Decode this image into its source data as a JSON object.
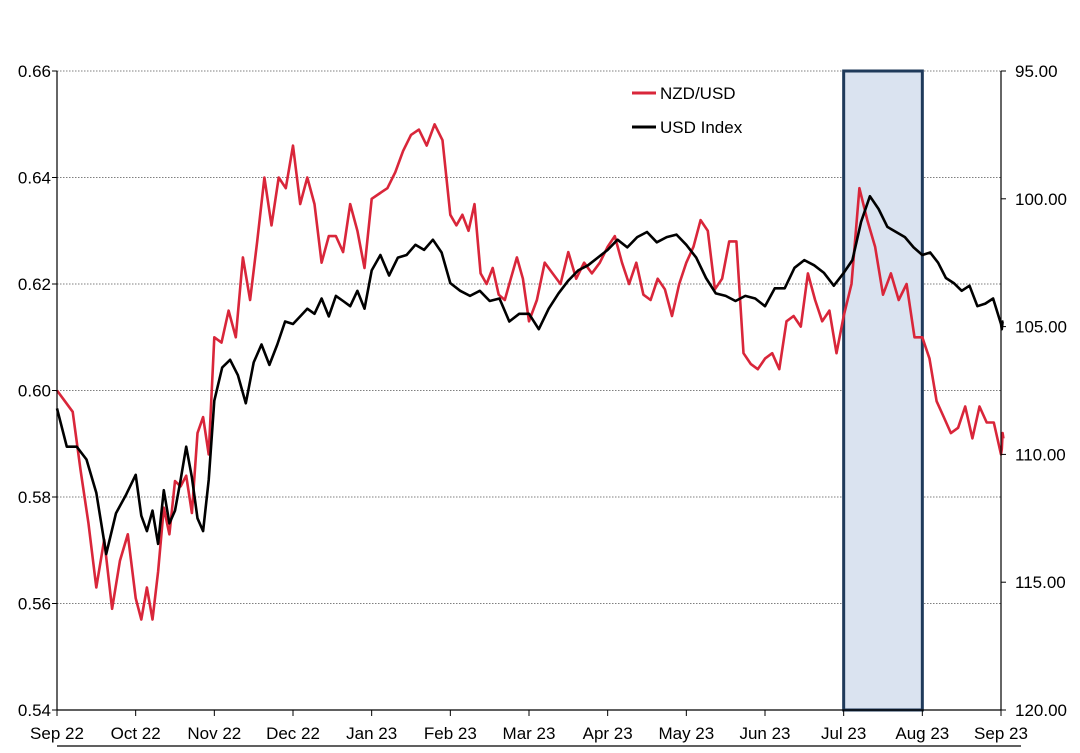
{
  "chart_data": {
    "type": "line",
    "title": "",
    "xlabel": "",
    "ylabel_left": "",
    "ylabel_right": "",
    "ylim_left": [
      0.54,
      0.66
    ],
    "ylim_right": [
      95.0,
      120.0
    ],
    "right_axis_inverted": true,
    "grid": true,
    "legend_position": "top-right",
    "y_ticks_left": [
      "0.54",
      "0.56",
      "0.58",
      "0.60",
      "0.62",
      "0.64",
      "0.66"
    ],
    "y_ticks_right": [
      "95.00",
      "100.00",
      "105.00",
      "110.00",
      "115.00",
      "120.00"
    ],
    "x_ticks": [
      "Sep 22",
      "Oct 22",
      "Nov 22",
      "Dec 22",
      "Jan 23",
      "Feb 23",
      "Mar 23",
      "Apr 23",
      "May 23",
      "Jun 23",
      "Jul 23",
      "Aug 23",
      "Sep 23"
    ],
    "highlight_period": {
      "from": "Jul 23",
      "to": "Aug 23",
      "color": "#dae3f0",
      "border": "#1f3a5a"
    },
    "series": [
      {
        "name": "NZD/USD",
        "axis": "left",
        "color": "#d9263a",
        "points": [
          [
            "Sep 22",
            0.6
          ],
          [
            "Sep 22",
            0.598
          ],
          [
            "Sep 22",
            0.596
          ],
          [
            "Sep 22",
            0.585
          ],
          [
            "Sep 22",
            0.575
          ],
          [
            "Sep 22",
            0.563
          ],
          [
            "Sep 22",
            0.572
          ],
          [
            "Sep 22",
            0.559
          ],
          [
            "Sep 22",
            0.568
          ],
          [
            "Sep 22",
            0.573
          ],
          [
            "Oct 22",
            0.561
          ],
          [
            "Oct 22",
            0.557
          ],
          [
            "Oct 22",
            0.563
          ],
          [
            "Oct 22",
            0.557
          ],
          [
            "Oct 22",
            0.566
          ],
          [
            "Oct 22",
            0.578
          ],
          [
            "Oct 22",
            0.573
          ],
          [
            "Oct 22",
            0.583
          ],
          [
            "Oct 22",
            0.582
          ],
          [
            "Oct 22",
            0.584
          ],
          [
            "Oct 22",
            0.577
          ],
          [
            "Oct 22",
            0.592
          ],
          [
            "Oct 22",
            0.595
          ],
          [
            "Oct 22",
            0.588
          ],
          [
            "Nov 22",
            0.61
          ],
          [
            "Nov 22",
            0.609
          ],
          [
            "Nov 22",
            0.615
          ],
          [
            "Nov 22",
            0.61
          ],
          [
            "Nov 22",
            0.625
          ],
          [
            "Nov 22",
            0.617
          ],
          [
            "Nov 22",
            0.628
          ],
          [
            "Nov 22",
            0.64
          ],
          [
            "Nov 22",
            0.631
          ],
          [
            "Nov 22",
            0.64
          ],
          [
            "Nov 22",
            0.638
          ],
          [
            "Dec 22",
            0.646
          ],
          [
            "Dec 22",
            0.635
          ],
          [
            "Dec 22",
            0.64
          ],
          [
            "Dec 22",
            0.635
          ],
          [
            "Dec 22",
            0.624
          ],
          [
            "Dec 22",
            0.629
          ],
          [
            "Dec 22",
            0.629
          ],
          [
            "Dec 22",
            0.626
          ],
          [
            "Dec 22",
            0.635
          ],
          [
            "Dec 22",
            0.63
          ],
          [
            "Dec 22",
            0.623
          ],
          [
            "Jan 23",
            0.636
          ],
          [
            "Jan 23",
            0.637
          ],
          [
            "Jan 23",
            0.638
          ],
          [
            "Jan 23",
            0.641
          ],
          [
            "Jan 23",
            0.645
          ],
          [
            "Jan 23",
            0.648
          ],
          [
            "Jan 23",
            0.649
          ],
          [
            "Jan 23",
            0.646
          ],
          [
            "Jan 23",
            0.65
          ],
          [
            "Jan 23",
            0.647
          ],
          [
            "Feb 23",
            0.633
          ],
          [
            "Feb 23",
            0.631
          ],
          [
            "Feb 23",
            0.633
          ],
          [
            "Feb 23",
            0.63
          ],
          [
            "Feb 23",
            0.635
          ],
          [
            "Feb 23",
            0.622
          ],
          [
            "Feb 23",
            0.62
          ],
          [
            "Feb 23",
            0.623
          ],
          [
            "Feb 23",
            0.618
          ],
          [
            "Feb 23",
            0.617
          ],
          [
            "Feb 23",
            0.621
          ],
          [
            "Feb 23",
            0.625
          ],
          [
            "Feb 23",
            0.621
          ],
          [
            "Mar 23",
            0.613
          ],
          [
            "Mar 23",
            0.617
          ],
          [
            "Mar 23",
            0.624
          ],
          [
            "Mar 23",
            0.622
          ],
          [
            "Mar 23",
            0.62
          ],
          [
            "Mar 23",
            0.626
          ],
          [
            "Mar 23",
            0.621
          ],
          [
            "Mar 23",
            0.624
          ],
          [
            "Mar 23",
            0.622
          ],
          [
            "Mar 23",
            0.624
          ],
          [
            "Apr 23",
            0.627
          ],
          [
            "Apr 23",
            0.629
          ],
          [
            "Apr 23",
            0.624
          ],
          [
            "Apr 23",
            0.62
          ],
          [
            "Apr 23",
            0.624
          ],
          [
            "Apr 23",
            0.618
          ],
          [
            "Apr 23",
            0.617
          ],
          [
            "Apr 23",
            0.621
          ],
          [
            "Apr 23",
            0.619
          ],
          [
            "Apr 23",
            0.614
          ],
          [
            "Apr 23",
            0.62
          ],
          [
            "May 23",
            0.624
          ],
          [
            "May 23",
            0.627
          ],
          [
            "May 23",
            0.632
          ],
          [
            "May 23",
            0.63
          ],
          [
            "May 23",
            0.619
          ],
          [
            "May 23",
            0.621
          ],
          [
            "May 23",
            0.628
          ],
          [
            "May 23",
            0.628
          ],
          [
            "May 23",
            0.607
          ],
          [
            "May 23",
            0.605
          ],
          [
            "May 23",
            0.604
          ],
          [
            "Jun 23",
            0.606
          ],
          [
            "Jun 23",
            0.607
          ],
          [
            "Jun 23",
            0.604
          ],
          [
            "Jun 23",
            0.613
          ],
          [
            "Jun 23",
            0.614
          ],
          [
            "Jun 23",
            0.612
          ],
          [
            "Jun 23",
            0.622
          ],
          [
            "Jun 23",
            0.617
          ],
          [
            "Jun 23",
            0.613
          ],
          [
            "Jun 23",
            0.615
          ],
          [
            "Jun 23",
            0.607
          ],
          [
            "Jul 23",
            0.614
          ],
          [
            "Jul 23",
            0.62
          ],
          [
            "Jul 23",
            0.638
          ],
          [
            "Jul 23",
            0.632
          ],
          [
            "Jul 23",
            0.627
          ],
          [
            "Jul 23",
            0.618
          ],
          [
            "Jul 23",
            0.622
          ],
          [
            "Jul 23",
            0.617
          ],
          [
            "Jul 23",
            0.62
          ],
          [
            "Jul 23",
            0.61
          ],
          [
            "Aug 23",
            0.61
          ],
          [
            "Aug 23",
            0.606
          ],
          [
            "Aug 23",
            0.598
          ],
          [
            "Aug 23",
            0.595
          ],
          [
            "Aug 23",
            0.592
          ],
          [
            "Aug 23",
            0.593
          ],
          [
            "Aug 23",
            0.597
          ],
          [
            "Aug 23",
            0.591
          ],
          [
            "Aug 23",
            0.597
          ],
          [
            "Aug 23",
            0.594
          ],
          [
            "Aug 23",
            0.594
          ],
          [
            "Sep 23",
            0.588
          ],
          [
            "Sep 23",
            0.589
          ],
          [
            "Sep 23",
            0.592
          ],
          [
            "Sep 23",
            0.591
          ]
        ]
      },
      {
        "name": "USD Index",
        "axis": "right",
        "color": "#000000",
        "points": [
          [
            "Sep 22",
            108.2
          ],
          [
            "Sep 22",
            109.7
          ],
          [
            "Sep 22",
            109.7
          ],
          [
            "Sep 22",
            110.2
          ],
          [
            "Sep 22",
            111.5
          ],
          [
            "Sep 22",
            113.9
          ],
          [
            "Sep 22",
            112.3
          ],
          [
            "Sep 22",
            111.6
          ],
          [
            "Oct 22",
            110.8
          ],
          [
            "Oct 22",
            112.4
          ],
          [
            "Oct 22",
            113.0
          ],
          [
            "Oct 22",
            112.2
          ],
          [
            "Oct 22",
            113.5
          ],
          [
            "Oct 22",
            111.4
          ],
          [
            "Oct 22",
            112.7
          ],
          [
            "Oct 22",
            112.2
          ],
          [
            "Oct 22",
            111.0
          ],
          [
            "Oct 22",
            109.7
          ],
          [
            "Oct 22",
            110.9
          ],
          [
            "Oct 22",
            112.5
          ],
          [
            "Oct 22",
            113.0
          ],
          [
            "Oct 22",
            111.0
          ],
          [
            "Nov 22",
            107.9
          ],
          [
            "Nov 22",
            106.6
          ],
          [
            "Nov 22",
            106.3
          ],
          [
            "Nov 22",
            106.9
          ],
          [
            "Nov 22",
            108.0
          ],
          [
            "Nov 22",
            106.4
          ],
          [
            "Nov 22",
            105.7
          ],
          [
            "Nov 22",
            106.5
          ],
          [
            "Nov 22",
            105.7
          ],
          [
            "Nov 22",
            104.8
          ],
          [
            "Dec 22",
            104.9
          ],
          [
            "Dec 22",
            104.6
          ],
          [
            "Dec 22",
            104.3
          ],
          [
            "Dec 22",
            104.5
          ],
          [
            "Dec 22",
            103.9
          ],
          [
            "Dec 22",
            104.6
          ],
          [
            "Dec 22",
            103.8
          ],
          [
            "Dec 22",
            104.0
          ],
          [
            "Dec 22",
            104.2
          ],
          [
            "Dec 22",
            103.6
          ],
          [
            "Dec 22",
            104.3
          ],
          [
            "Jan 23",
            102.8
          ],
          [
            "Jan 23",
            102.2
          ],
          [
            "Jan 23",
            103.0
          ],
          [
            "Jan 23",
            102.3
          ],
          [
            "Jan 23",
            102.2
          ],
          [
            "Jan 23",
            101.8
          ],
          [
            "Jan 23",
            102.0
          ],
          [
            "Jan 23",
            101.6
          ],
          [
            "Jan 23",
            102.1
          ],
          [
            "Feb 23",
            103.3
          ],
          [
            "Feb 23",
            103.6
          ],
          [
            "Feb 23",
            103.8
          ],
          [
            "Feb 23",
            103.6
          ],
          [
            "Feb 23",
            104.0
          ],
          [
            "Feb 23",
            103.9
          ],
          [
            "Feb 23",
            104.8
          ],
          [
            "Feb 23",
            104.5
          ],
          [
            "Mar 23",
            104.5
          ],
          [
            "Mar 23",
            105.1
          ],
          [
            "Mar 23",
            104.3
          ],
          [
            "Mar 23",
            103.7
          ],
          [
            "Mar 23",
            103.2
          ],
          [
            "Mar 23",
            102.8
          ],
          [
            "Mar 23",
            102.6
          ],
          [
            "Mar 23",
            102.3
          ],
          [
            "Apr 23",
            102.0
          ],
          [
            "Apr 23",
            101.6
          ],
          [
            "Apr 23",
            101.9
          ],
          [
            "Apr 23",
            101.5
          ],
          [
            "Apr 23",
            101.3
          ],
          [
            "Apr 23",
            101.7
          ],
          [
            "Apr 23",
            101.5
          ],
          [
            "Apr 23",
            101.4
          ],
          [
            "May 23",
            101.8
          ],
          [
            "May 23",
            102.3
          ],
          [
            "May 23",
            103.1
          ],
          [
            "May 23",
            103.7
          ],
          [
            "May 23",
            103.8
          ],
          [
            "May 23",
            104.0
          ],
          [
            "May 23",
            103.8
          ],
          [
            "May 23",
            103.9
          ],
          [
            "Jun 23",
            104.2
          ],
          [
            "Jun 23",
            103.5
          ],
          [
            "Jun 23",
            103.5
          ],
          [
            "Jun 23",
            102.7
          ],
          [
            "Jun 23",
            102.4
          ],
          [
            "Jun 23",
            102.6
          ],
          [
            "Jun 23",
            102.9
          ],
          [
            "Jun 23",
            103.4
          ],
          [
            "Jul 23",
            102.9
          ],
          [
            "Jul 23",
            102.4
          ],
          [
            "Jul 23",
            100.9
          ],
          [
            "Jul 23",
            99.9
          ],
          [
            "Jul 23",
            100.4
          ],
          [
            "Jul 23",
            101.1
          ],
          [
            "Jul 23",
            101.3
          ],
          [
            "Jul 23",
            101.5
          ],
          [
            "Jul 23",
            101.9
          ],
          [
            "Aug 23",
            102.2
          ],
          [
            "Aug 23",
            102.1
          ],
          [
            "Aug 23",
            102.5
          ],
          [
            "Aug 23",
            103.1
          ],
          [
            "Aug 23",
            103.3
          ],
          [
            "Aug 23",
            103.6
          ],
          [
            "Aug 23",
            103.4
          ],
          [
            "Aug 23",
            104.2
          ],
          [
            "Aug 23",
            104.1
          ],
          [
            "Aug 23",
            103.9
          ],
          [
            "Sep 23",
            104.9
          ],
          [
            "Sep 23",
            105.1
          ],
          [
            "Sep 23",
            104.8
          ],
          [
            "Sep 23",
            104.8
          ]
        ]
      }
    ]
  }
}
